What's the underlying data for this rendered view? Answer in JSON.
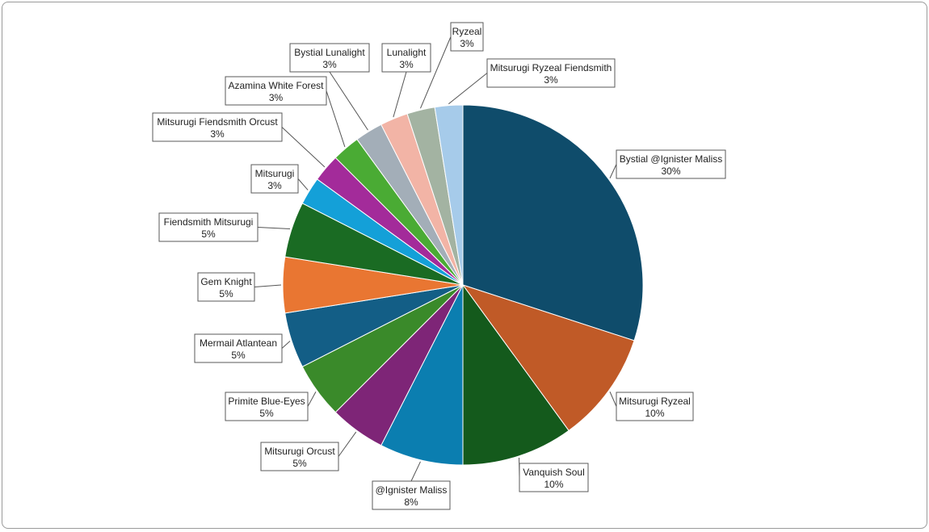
{
  "chart_data": {
    "type": "pie",
    "title": "",
    "slices": [
      {
        "label": "Bystial @Ignister Maliss",
        "value": 30,
        "pct_label": "30%",
        "color": "#0f4c6b"
      },
      {
        "label": "Mitsurugi Ryzeal",
        "value": 10,
        "pct_label": "10%",
        "color": "#c05a27"
      },
      {
        "label": "Vanquish Soul",
        "value": 10,
        "pct_label": "10%",
        "color": "#145a1c"
      },
      {
        "label": "@Ignister Maliss",
        "value": 7.5,
        "pct_label": "8%",
        "color": "#0b7eb0"
      },
      {
        "label": "Mitsurugi Orcust",
        "value": 5,
        "pct_label": "5%",
        "color": "#7e2577"
      },
      {
        "label": "Primite Blue-Eyes",
        "value": 5,
        "pct_label": "5%",
        "color": "#3a8a2a"
      },
      {
        "label": "Mermail Atlantean",
        "value": 5,
        "pct_label": "5%",
        "color": "#135e86"
      },
      {
        "label": "Gem Knight",
        "value": 5,
        "pct_label": "5%",
        "color": "#e97632"
      },
      {
        "label": "Fiendsmith Mitsurugi",
        "value": 5,
        "pct_label": "5%",
        "color": "#1a6b23"
      },
      {
        "label": "Mitsurugi",
        "value": 2.5,
        "pct_label": "3%",
        "color": "#14a0d8"
      },
      {
        "label": "Mitsurugi Fiendsmith Orcust",
        "value": 2.5,
        "pct_label": "3%",
        "color": "#a32b9a"
      },
      {
        "label": "Azamina White Forest",
        "value": 2.5,
        "pct_label": "3%",
        "color": "#4aab34"
      },
      {
        "label": "Bystial Lunalight",
        "value": 2.5,
        "pct_label": "3%",
        "color": "#a3aeb8"
      },
      {
        "label": "Lunalight",
        "value": 2.5,
        "pct_label": "3%",
        "color": "#f2b4a6"
      },
      {
        "label": "Ryzeal",
        "value": 2.5,
        "pct_label": "3%",
        "color": "#a3b3a2"
      },
      {
        "label": "Mitsurugi Ryzeal Fiendsmith",
        "value": 2.5,
        "pct_label": "3%",
        "color": "#a6cbea"
      }
    ],
    "start_angle": "12 o'clock",
    "direction": "clockwise",
    "legend": "none",
    "data_labels": "callouts outside pie with category name and percentage"
  }
}
